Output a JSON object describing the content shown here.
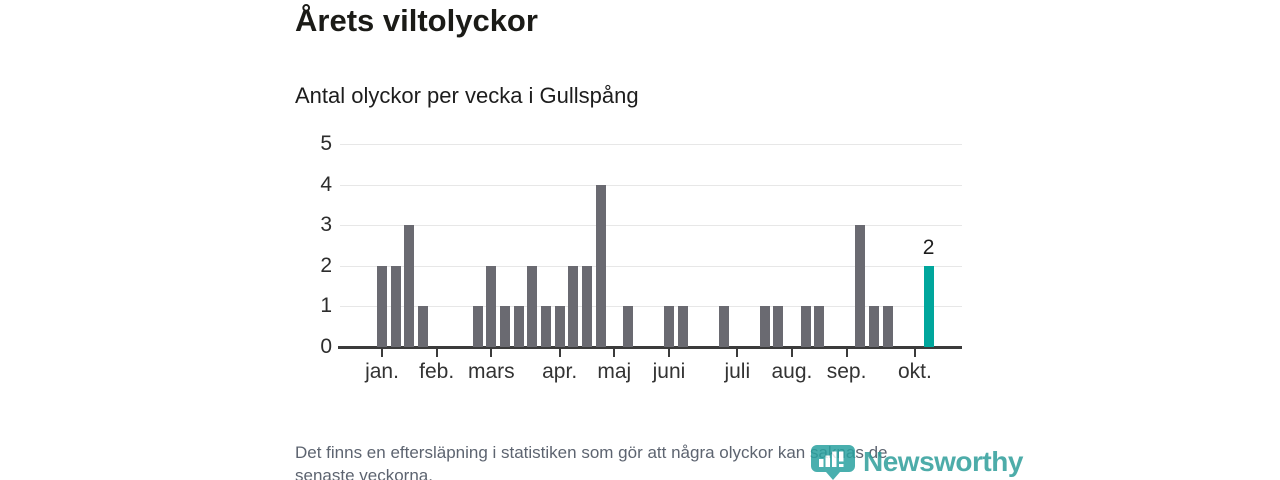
{
  "title": "Årets viltolyckor",
  "subtitle": "Antal olyckor per vecka i Gullspång",
  "footer": {
    "line1": "Det finns en eftersläpning i statistiken som gör att några olyckor kan saknas de",
    "line2": "senaste veckorna."
  },
  "watermark": {
    "brand": "Newsworthy"
  },
  "colors": {
    "bar": "#6a6a71",
    "highlight": "#00a69c",
    "axis": "#3b3b3b",
    "grid": "#e7e7e7",
    "brand_teal": "#2f9e9b",
    "footer_text": "#5d6470"
  },
  "chart_data": {
    "type": "bar",
    "title": "Årets viltolyckor",
    "subtitle": "Antal olyckor per vecka i Gullspång",
    "xlabel": "",
    "ylabel": "",
    "x_unit": "vecka",
    "first_week": 1,
    "last_week": 41,
    "values": [
      2,
      2,
      3,
      1,
      0,
      0,
      0,
      1,
      2,
      1,
      1,
      2,
      1,
      1,
      2,
      2,
      4,
      0,
      1,
      0,
      0,
      1,
      1,
      0,
      0,
      1,
      0,
      0,
      1,
      1,
      0,
      1,
      1,
      0,
      0,
      3,
      1,
      1,
      0,
      0,
      2
    ],
    "highlight_last": true,
    "highlight_value_label": "2",
    "ylim": [
      0,
      5
    ],
    "yticks": [
      0,
      1,
      2,
      3,
      4,
      5
    ],
    "grid": true,
    "legend": false,
    "month_ticks": [
      {
        "label": "jan.",
        "week": 1
      },
      {
        "label": "feb.",
        "week": 5
      },
      {
        "label": "mars",
        "week": 9
      },
      {
        "label": "apr.",
        "week": 14
      },
      {
        "label": "maj",
        "week": 18
      },
      {
        "label": "juni",
        "week": 22
      },
      {
        "label": "juli",
        "week": 27
      },
      {
        "label": "aug.",
        "week": 31
      },
      {
        "label": "sep.",
        "week": 35
      },
      {
        "label": "okt.",
        "week": 40
      }
    ]
  }
}
